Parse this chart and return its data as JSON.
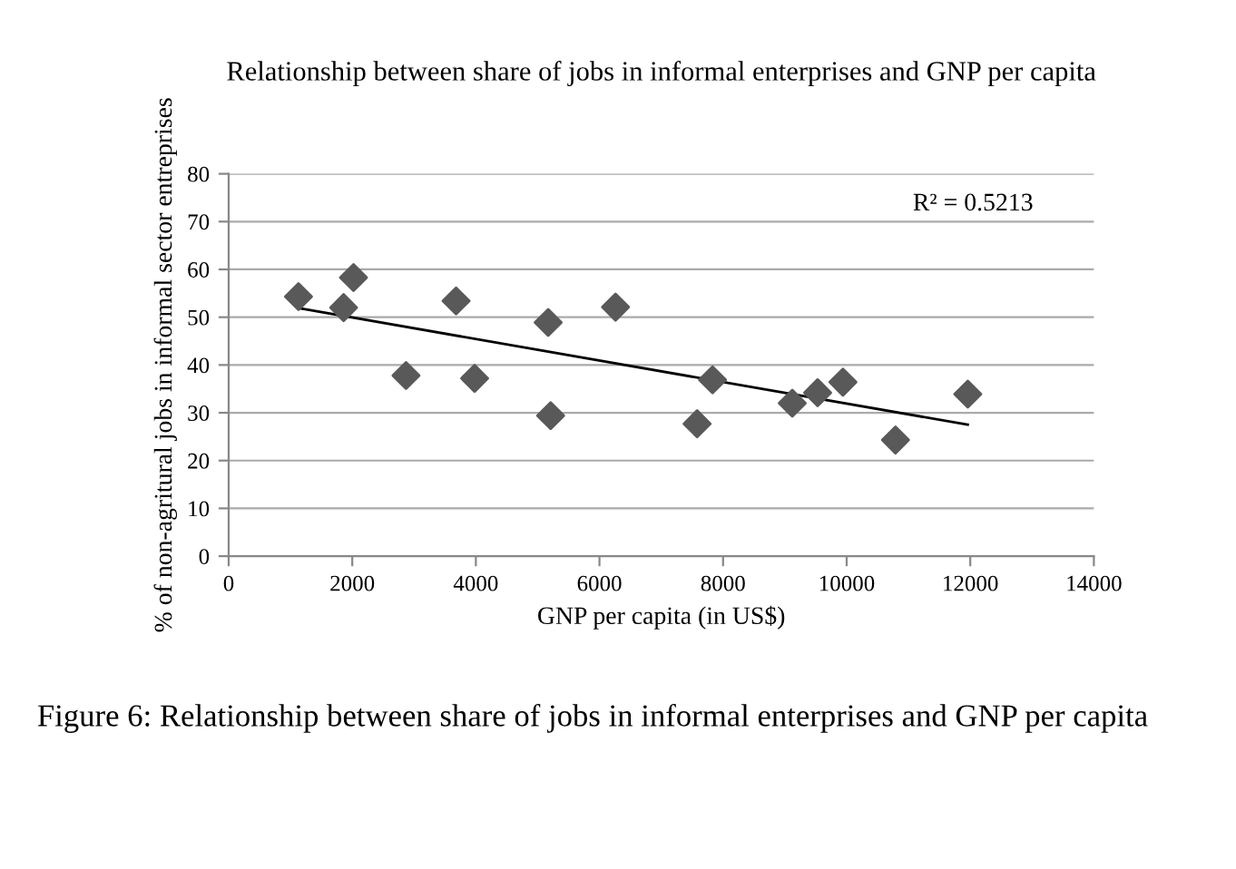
{
  "chart_data": {
    "type": "scatter",
    "title": "Relationship between share of jobs in informal enterprises and GNP per capita",
    "xlabel": "GNP per capita (in US$)",
    "ylabel": "% of non-agritural jobs in informal sector entreprises",
    "series": [
      {
        "marker": "diamond",
        "color": "#595959",
        "x": [
          1130,
          1860,
          2020,
          2870,
          3680,
          3980,
          5170,
          5210,
          6260,
          7580,
          7830,
          9120,
          9530,
          9940,
          10790,
          11960
        ],
        "values": [
          54.3,
          52.0,
          58.3,
          37.8,
          53.4,
          37.2,
          48.9,
          29.4,
          52.1,
          27.7,
          36.9,
          32.0,
          34.2,
          36.4,
          24.3,
          33.9
        ]
      },
      {
        "type": "line",
        "marker": "none",
        "color": "#000000",
        "x": [
          1130,
          11960
        ],
        "values": [
          51.9,
          27.5
        ]
      }
    ],
    "annotations": [
      "R² = 0.5213",
      "Figure 6: Relationship between share of jobs in informal enterprises and GNP per capita"
    ],
    "xlim": [
      0,
      14000
    ],
    "xticks": [
      0,
      2000,
      4000,
      6000,
      8000,
      10000,
      12000,
      14000
    ],
    "ylim": [
      0,
      80
    ],
    "yticks": [
      0,
      10,
      20,
      30,
      40,
      50,
      60,
      70,
      80
    ],
    "grid": "y",
    "legend": false
  }
}
